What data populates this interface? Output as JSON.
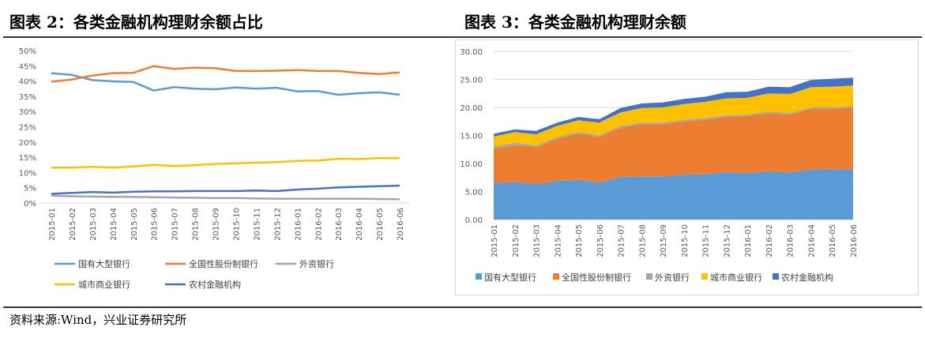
{
  "left": {
    "title": "图表 2：各类金融机构理财余额占比"
  },
  "right": {
    "title": "图表 3：各类金融机构理财余额"
  },
  "source": "资料来源:Wind，兴业证券研究所",
  "colors": {
    "国有大型银行": "#5b9bd5",
    "全国性股份制银行": "#ed7d31",
    "外资银行": "#a5a5a5",
    "城市商业银行": "#ffc000",
    "农村金融机构": "#4472c4"
  },
  "chart_data": [
    {
      "type": "line",
      "categories": [
        "2015-01",
        "2015-02",
        "2015-03",
        "2015-04",
        "2015-05",
        "2015-06",
        "2015-07",
        "2015-08",
        "2015-09",
        "2015-10",
        "2015-11",
        "2015-12",
        "2016-01",
        "2016-02",
        "2016-03",
        "2016-04",
        "2016-05",
        "2016-06"
      ],
      "yticks": [
        "0%",
        "5%",
        "10%",
        "15%",
        "20%",
        "25%",
        "30%",
        "35%",
        "40%",
        "45%",
        "50%"
      ],
      "ylim": [
        0,
        50
      ],
      "legend_position": "bottom",
      "series": [
        {
          "name": "国有大型银行",
          "values": [
            42.6,
            42.0,
            40.3,
            39.9,
            39.7,
            36.9,
            38.0,
            37.5,
            37.3,
            37.9,
            37.5,
            37.8,
            36.6,
            36.7,
            35.5,
            36.0,
            36.3,
            35.5
          ]
        },
        {
          "name": "全国性股份制银行",
          "values": [
            39.8,
            40.5,
            41.8,
            42.6,
            42.7,
            44.9,
            44.0,
            44.4,
            44.2,
            43.3,
            43.3,
            43.4,
            43.6,
            43.3,
            43.3,
            42.7,
            42.3,
            42.8
          ]
        },
        {
          "name": "外资银行",
          "values": [
            2.4,
            2.2,
            2.1,
            2.0,
            2.0,
            1.9,
            1.8,
            1.7,
            1.6,
            1.6,
            1.5,
            1.4,
            1.4,
            1.4,
            1.4,
            1.4,
            1.3,
            1.2
          ]
        },
        {
          "name": "城市商业银行",
          "values": [
            11.6,
            11.6,
            11.9,
            11.6,
            12.0,
            12.5,
            12.1,
            12.4,
            12.8,
            13.0,
            13.2,
            13.4,
            13.8,
            13.9,
            14.5,
            14.4,
            14.7,
            14.7
          ]
        },
        {
          "name": "农村金融机构",
          "values": [
            3.0,
            3.3,
            3.6,
            3.4,
            3.7,
            3.8,
            3.8,
            3.9,
            3.9,
            3.9,
            4.1,
            3.9,
            4.4,
            4.7,
            5.1,
            5.3,
            5.5,
            5.7
          ]
        }
      ]
    },
    {
      "type": "area",
      "stacked": true,
      "categories": [
        "2015-01",
        "2015-02",
        "2015-03",
        "2015-04",
        "2015-05",
        "2015-06",
        "2015-07",
        "2015-08",
        "2015-09",
        "2015-10",
        "2015-11",
        "2015-12",
        "2016-01",
        "2016-02",
        "2016-03",
        "2016-04",
        "2016-05",
        "2016-06"
      ],
      "yticks": [
        "0.00",
        "5.00",
        "10.00",
        "15.00",
        "20.00",
        "25.00",
        "30.00"
      ],
      "ylim": [
        0,
        30
      ],
      "legend_position": "bottom",
      "series": [
        {
          "name": "国有大型银行",
          "values": [
            6.5,
            6.7,
            6.3,
            6.9,
            7.1,
            6.6,
            7.6,
            7.7,
            7.7,
            8.0,
            8.1,
            8.5,
            8.3,
            8.6,
            8.4,
            8.9,
            9.0,
            8.9
          ]
        },
        {
          "name": "全国性股份制银行",
          "values": [
            6.1,
            6.6,
            6.6,
            7.5,
            8.2,
            8.1,
            8.8,
            9.3,
            9.3,
            9.5,
            9.7,
            9.8,
            10.1,
            10.4,
            10.3,
            10.8,
            10.7,
            11.0
          ]
        },
        {
          "name": "外资银行",
          "values": [
            0.4,
            0.4,
            0.3,
            0.3,
            0.3,
            0.3,
            0.3,
            0.3,
            0.3,
            0.3,
            0.3,
            0.3,
            0.3,
            0.3,
            0.3,
            0.3,
            0.3,
            0.3
          ]
        },
        {
          "name": "城市商业银行",
          "values": [
            1.8,
            1.9,
            2.0,
            2.0,
            2.1,
            2.3,
            2.4,
            2.6,
            2.7,
            2.8,
            2.9,
            3.0,
            3.0,
            3.2,
            3.4,
            3.6,
            3.7,
            3.7
          ]
        },
        {
          "name": "农村金融机构",
          "values": [
            0.5,
            0.5,
            0.6,
            0.6,
            0.6,
            0.6,
            0.8,
            0.8,
            0.9,
            0.9,
            0.9,
            1.1,
            1.1,
            1.2,
            1.2,
            1.3,
            1.4,
            1.4
          ]
        }
      ]
    }
  ]
}
